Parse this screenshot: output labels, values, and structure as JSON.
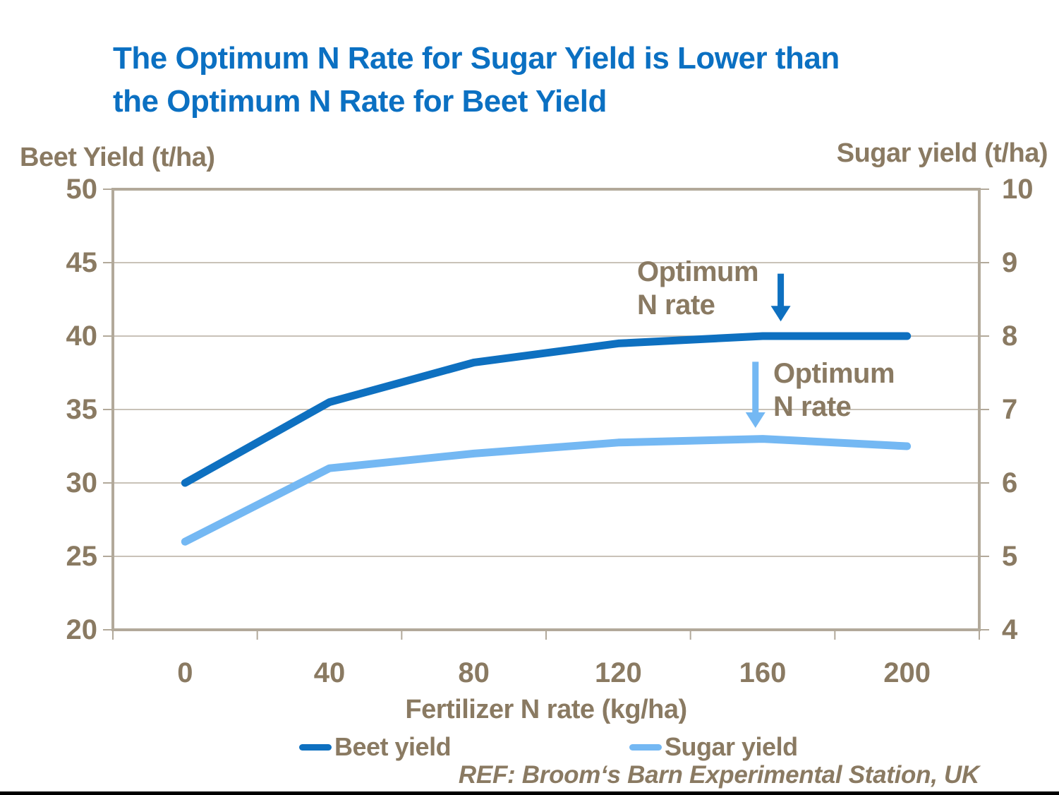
{
  "title": {
    "line1": "The Optimum N Rate for Sugar Yield is Lower than",
    "line2": "the Optimum N Rate for Beet Yield"
  },
  "footer": {
    "ref_text": "REF: Broom‘s Barn Experimental Station, UK"
  },
  "colors": {
    "title_blue": "#0b70c2",
    "beet_blue": "#0e70c0",
    "sugar_blue": "#74b8f3",
    "text_brown": "#8a7a62",
    "axis": "#b2a99a",
    "grid": "#b7aea0",
    "bottom_bar": "#000000"
  },
  "chart_data": {
    "type": "line",
    "title": "The Optimum N Rate for Sugar Yield is Lower than the Optimum N Rate for Beet Yield",
    "x": [
      0,
      40,
      80,
      120,
      160,
      200
    ],
    "xlabel": "Fertilizer N rate (kg/ha)",
    "left_axis": {
      "label": "Beet Yield (t/ha)",
      "min": 20,
      "max": 50,
      "ticks": [
        50,
        45,
        40,
        35,
        30,
        25,
        20
      ]
    },
    "right_axis": {
      "label": "Sugar yield (t/ha)",
      "min": 4,
      "max": 10,
      "ticks": [
        10,
        9,
        8,
        7,
        6,
        5,
        4
      ]
    },
    "grid": "horizontal-only",
    "legend_position": "bottom",
    "series": [
      {
        "name": "Beet yield",
        "axis": "left",
        "color": "#0e70c0",
        "values": [
          30,
          35.5,
          38.2,
          39.5,
          40,
          40
        ]
      },
      {
        "name": "Sugar yield",
        "axis": "right",
        "color": "#74b8f3",
        "values": [
          5.2,
          6.2,
          6.4,
          6.55,
          6.6,
          6.5
        ]
      }
    ],
    "annotations": [
      {
        "name": "beet-optimum",
        "text_line1": "Optimum",
        "text_line2": "N rate",
        "arrow_x_kgha": 165,
        "arrow_axis": "right",
        "arrow_from": 8.85,
        "arrow_to": 8.2,
        "color": "#0e70c0"
      },
      {
        "name": "sugar-optimum",
        "text_line1": "Optimum",
        "text_line2": "N rate",
        "arrow_x_kgha": 158,
        "arrow_axis": "right",
        "arrow_from": 7.65,
        "arrow_to": 6.75,
        "color": "#74b8f3"
      }
    ]
  }
}
